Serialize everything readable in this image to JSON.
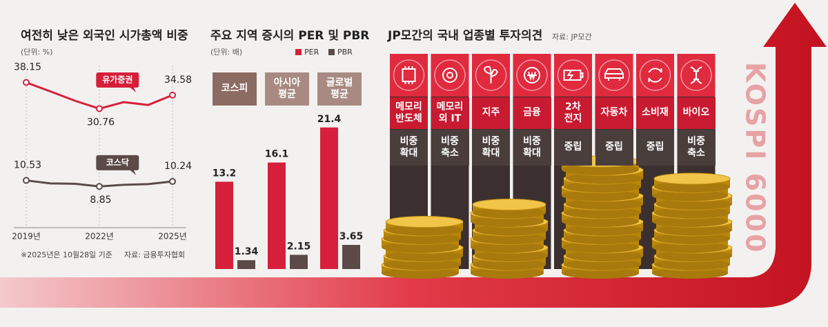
{
  "chart_data": [
    {
      "type": "line",
      "title": "여전히 낮은 외국인 시가총액 비중",
      "unit": "(단위: %)",
      "x": [
        2019,
        2020,
        2021,
        2022,
        2023,
        2024,
        2025
      ],
      "xlim": [
        2019,
        2025
      ],
      "xticks": [
        {
          "value": 2019,
          "label": "2019년"
        },
        {
          "value": 2022,
          "label": "2022년"
        },
        {
          "value": 2025,
          "label": "2025년"
        }
      ],
      "ylim": [
        5,
        40
      ],
      "series": [
        {
          "name": "유가증권",
          "color": "#d6203b",
          "values": [
            38.15,
            35.6,
            33.0,
            30.76,
            32.6,
            31.8,
            34.58
          ]
        },
        {
          "name": "코스닥",
          "color": "#5b4a48",
          "values": [
            10.53,
            9.7,
            9.6,
            8.85,
            9.3,
            9.5,
            10.24
          ]
        }
      ],
      "notes": [
        "※2025년은 10월28일 기준",
        "자료: 금융투자협회"
      ]
    },
    {
      "type": "bar",
      "title": "주요 지역 증시의 PER 및 PBR",
      "unit": "(단위: 배)",
      "categories": [
        "코스피",
        "아시아\n평균",
        "글로벌\n평균"
      ],
      "series": [
        {
          "name": "PER",
          "color": "#d6203b",
          "values": [
            13.2,
            16.1,
            21.4
          ]
        },
        {
          "name": "PBR",
          "color": "#5b4a48",
          "values": [
            1.34,
            2.15,
            3.65
          ]
        }
      ],
      "ylim": [
        0,
        22
      ]
    }
  ],
  "opinions": {
    "title": "JP모간의 국내 업종별 투자의견",
    "source": "자료: JP모간",
    "sectors": [
      {
        "name": "메모리\n반도체",
        "opinion": "비중\n확대"
      },
      {
        "name": "메모리\n외 IT",
        "opinion": "비중\n축소"
      },
      {
        "name": "지주",
        "opinion": "비중\n확대"
      },
      {
        "name": "금융",
        "opinion": "비중\n확대"
      },
      {
        "name": "2차\n전지",
        "opinion": "중립"
      },
      {
        "name": "자동차",
        "opinion": "중립"
      },
      {
        "name": "소비재",
        "opinion": "중립"
      },
      {
        "name": "바이오",
        "opinion": "비중\n축소"
      }
    ]
  },
  "banner": "KOSPI 6000"
}
